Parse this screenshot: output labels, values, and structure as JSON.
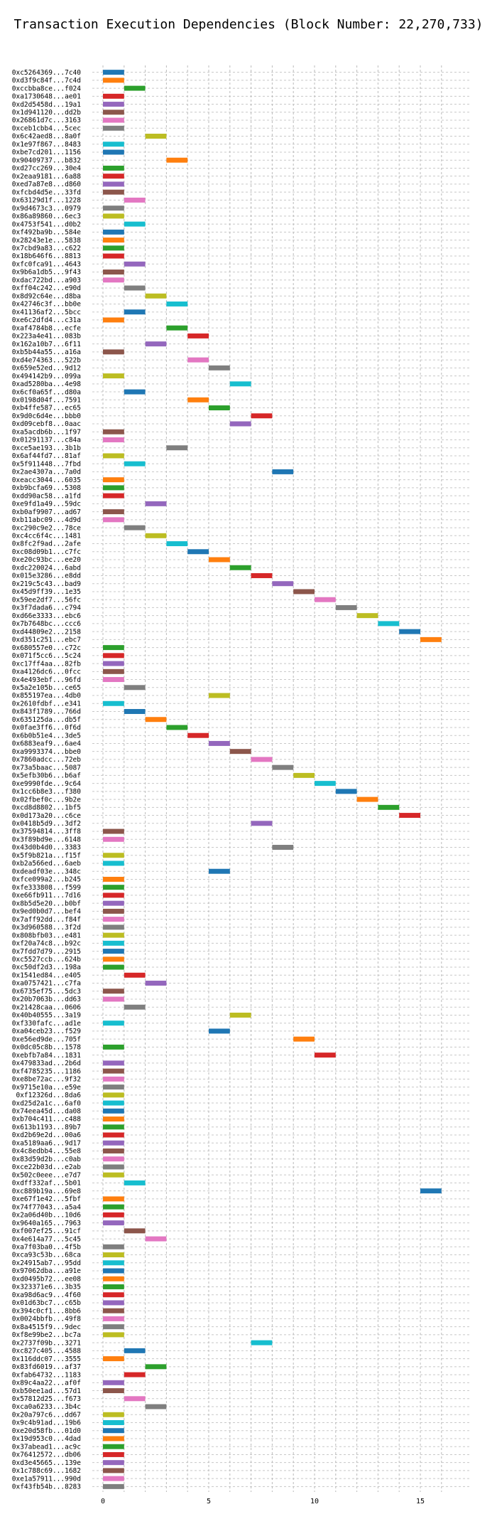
{
  "chart_data": {
    "type": "gantt",
    "title": "Transaction Execution Dependencies (Block Number: 22,270,733)",
    "xlabel": "",
    "ylabel": "",
    "xlim": [
      0,
      16.5
    ],
    "x_ticks": [
      0,
      5,
      10,
      15
    ],
    "grid": true,
    "palette": [
      "#1f77b4",
      "#ff7f0e",
      "#2ca02c",
      "#d62728",
      "#9467bd",
      "#8c564b",
      "#e377c2",
      "#7f7f7f",
      "#bcbd22",
      "#17becf"
    ],
    "rows": [
      {
        "label": "0xc5264369...7c40",
        "start": 0
      },
      {
        "label": "0xd3f9c84f...7c4d",
        "start": 0
      },
      {
        "label": "0xccbba8ce...f024",
        "start": 1
      },
      {
        "label": "0xa1730648...ae01",
        "start": 0
      },
      {
        "label": "0xd2d5458d...19a1",
        "start": 0
      },
      {
        "label": "0x1d941120...dd2b",
        "start": 0
      },
      {
        "label": "0x26861d7c...3163",
        "start": 0
      },
      {
        "label": "0xceb1cbb4...5cec",
        "start": 0
      },
      {
        "label": "0x6c42aed8...8a0f",
        "start": 2
      },
      {
        "label": "0x1e97f867...8483",
        "start": 0
      },
      {
        "label": "0xbe7cd201...1156",
        "start": 0
      },
      {
        "label": "0x90409737...b832",
        "start": 3
      },
      {
        "label": "0xd27cc269...30e4",
        "start": 0
      },
      {
        "label": "0x2eaa9181...6a88",
        "start": 0
      },
      {
        "label": "0xed7a87e8...d860",
        "start": 0
      },
      {
        "label": "0xfcbd4d5e...33fd",
        "start": 0
      },
      {
        "label": "0x63129d1f...1228",
        "start": 1
      },
      {
        "label": "0x9d4673c3...0979",
        "start": 0
      },
      {
        "label": "0x86a89860...6ec3",
        "start": 0
      },
      {
        "label": "0x4753f541...d0b2",
        "start": 1
      },
      {
        "label": "0xf492ba9b...584e",
        "start": 0
      },
      {
        "label": "0x28243e1e...5838",
        "start": 0
      },
      {
        "label": "0x7cbd9a83...c622",
        "start": 0
      },
      {
        "label": "0x18b646f6...8813",
        "start": 0
      },
      {
        "label": "0xfc0fca91...4643",
        "start": 1
      },
      {
        "label": "0x9b6a1db5...9f43",
        "start": 0
      },
      {
        "label": "0xdac722bd...a903",
        "start": 0
      },
      {
        "label": "0xff04c242...e90d",
        "start": 1
      },
      {
        "label": "0x8d92c64e...d8ba",
        "start": 2
      },
      {
        "label": "0x42746c3f...bb0e",
        "start": 3
      },
      {
        "label": "0x41136af2...5bcc",
        "start": 1
      },
      {
        "label": "0xe6c2dfd4...c31a",
        "start": 0
      },
      {
        "label": "0xaf4784b8...ecfe",
        "start": 3
      },
      {
        "label": "0x223a4e41...083b",
        "start": 4
      },
      {
        "label": "0x162a10b7...6f11",
        "start": 2
      },
      {
        "label": "0xb5b44a55...a16a",
        "start": 0
      },
      {
        "label": "0xd4e74363...522b",
        "start": 4
      },
      {
        "label": "0x659e52ed...9d12",
        "start": 5
      },
      {
        "label": "0x494142b9...099a",
        "start": 0
      },
      {
        "label": "0xad5280ba...4e98",
        "start": 6
      },
      {
        "label": "0x6cf0a65f...d80a",
        "start": 1
      },
      {
        "label": "0x0198d04f...7591",
        "start": 4
      },
      {
        "label": "0xb4ffe587...ec65",
        "start": 5
      },
      {
        "label": "0x9d0c6d4e...bbb0",
        "start": 7
      },
      {
        "label": "0xd09cebf8...0aac",
        "start": 6
      },
      {
        "label": "0xa5acdb6b...1f97",
        "start": 0
      },
      {
        "label": "0x01291137...c84a",
        "start": 0
      },
      {
        "label": "0xce5ae193...3b1b",
        "start": 3
      },
      {
        "label": "0x6af44fd7...81af",
        "start": 0
      },
      {
        "label": "0x5f911448...7fbd",
        "start": 1
      },
      {
        "label": "0x2ae4307a...7a0d",
        "start": 8
      },
      {
        "label": "0xeacc3044...6035",
        "start": 0
      },
      {
        "label": "0xb9bcfa69...5308",
        "start": 0
      },
      {
        "label": "0xdd90ac58...a1fd",
        "start": 0
      },
      {
        "label": "0xe9fd1a49...59dc",
        "start": 2
      },
      {
        "label": "0xb0af9907...ad67",
        "start": 0
      },
      {
        "label": "0xb11abc09...4d9d",
        "start": 0
      },
      {
        "label": "0xc290c9e2...78ce",
        "start": 1
      },
      {
        "label": "0xc4cc6f4c...1481",
        "start": 2
      },
      {
        "label": "0x8fc2f9ad...2afe",
        "start": 3
      },
      {
        "label": "0xc08d09b1...c7fc",
        "start": 4
      },
      {
        "label": "0xe20c93bc...ee20",
        "start": 5
      },
      {
        "label": "0xdc220024...6abd",
        "start": 6
      },
      {
        "label": "0x015e3286...e8dd",
        "start": 7
      },
      {
        "label": "0x219c5c43...bad9",
        "start": 8
      },
      {
        "label": "0x45d9ff39...1e35",
        "start": 9
      },
      {
        "label": "0x59ee2df7...56fc",
        "start": 10
      },
      {
        "label": "0x3f7dada6...c794",
        "start": 11
      },
      {
        "label": "0xd66e3333...ebc6",
        "start": 12
      },
      {
        "label": "0x7b7648bc...ccc6",
        "start": 13
      },
      {
        "label": "0xd44809e2...2158",
        "start": 14
      },
      {
        "label": "0xd351c251...ebc7",
        "start": 15
      },
      {
        "label": "0x680557e0...c72c",
        "start": 0
      },
      {
        "label": "0x071f5cc6...5c24",
        "start": 0
      },
      {
        "label": "0xc17ff4aa...82fb",
        "start": 0
      },
      {
        "label": "0xa4126dc6...0fcc",
        "start": 0
      },
      {
        "label": "0x4e493ebf...96fd",
        "start": 0
      },
      {
        "label": "0x5a2e105b...ce65",
        "start": 1
      },
      {
        "label": "0x855197ea...4db0",
        "start": 5
      },
      {
        "label": "0x2610fdbf...e341",
        "start": 0
      },
      {
        "label": "0x843f1789...766d",
        "start": 1
      },
      {
        "label": "0x635125da...db5f",
        "start": 2
      },
      {
        "label": "0x0fae3ff6...0f6d",
        "start": 3
      },
      {
        "label": "0x6b0b51e4...3de5",
        "start": 4
      },
      {
        "label": "0x6883eaf9...6ae4",
        "start": 5
      },
      {
        "label": "0xa9993374...bbe0",
        "start": 6
      },
      {
        "label": "0x7860adcc...72eb",
        "start": 7
      },
      {
        "label": "0x73a5baac...5087",
        "start": 8
      },
      {
        "label": "0x5efb30b6...b6af",
        "start": 9
      },
      {
        "label": "0xe9990fde...9c64",
        "start": 10
      },
      {
        "label": "0x1cc6b8e3...f380",
        "start": 11
      },
      {
        "label": "0x02fbef0c...9b2e",
        "start": 12
      },
      {
        "label": "0xcd8d8802...1bf5",
        "start": 13
      },
      {
        "label": "0x0d173a20...c6ce",
        "start": 14
      },
      {
        "label": "0x0418b5d9...3df2",
        "start": 7
      },
      {
        "label": "0x37594814...3ff8",
        "start": 0
      },
      {
        "label": "0x3f89bd9e...6148",
        "start": 0
      },
      {
        "label": "0x43d0b4d0...3383",
        "start": 8
      },
      {
        "label": "0x5f9b821a...f15f",
        "start": 0
      },
      {
        "label": "0xb2a566ed...6aeb",
        "start": 0
      },
      {
        "label": "0xdeadf03e...348c",
        "start": 5
      },
      {
        "label": "0xfce099a2...b245",
        "start": 0
      },
      {
        "label": "0xfe333808...f599",
        "start": 0
      },
      {
        "label": "0xe66fb911...7d16",
        "start": 0
      },
      {
        "label": "0x8b5d5e20...b0bf",
        "start": 0
      },
      {
        "label": "0x9ed0b0d7...bef4",
        "start": 0
      },
      {
        "label": "0x7aff92dd...f84f",
        "start": 0
      },
      {
        "label": "0x3d960588...3f2d",
        "start": 0
      },
      {
        "label": "0x808bfb03...e481",
        "start": 0
      },
      {
        "label": "0xf20a74c8...b92c",
        "start": 0
      },
      {
        "label": "0x7fdd7d79...2915",
        "start": 0
      },
      {
        "label": "0xc5527ccb...624b",
        "start": 0
      },
      {
        "label": "0xc50df2d3...198a",
        "start": 0
      },
      {
        "label": "0x1541ed84...e405",
        "start": 1
      },
      {
        "label": "0xa0757421...c7fa",
        "start": 2
      },
      {
        "label": "0x6735ef75...5dc3",
        "start": 0
      },
      {
        "label": "0x20b7063b...dd63",
        "start": 0
      },
      {
        "label": "0x21428caa...0606",
        "start": 1
      },
      {
        "label": "0x40b40555...3a19",
        "start": 6
      },
      {
        "label": "0xf330fafc...ad1e",
        "start": 0
      },
      {
        "label": "0xa04ceb23...f529",
        "start": 5
      },
      {
        "label": "0xe56ed9de...705f",
        "start": 9
      },
      {
        "label": "0x0dc05c8b...1578",
        "start": 0
      },
      {
        "label": "0xebfb7a84...1831",
        "start": 10
      },
      {
        "label": "0x479833ad...2b6d",
        "start": 0
      },
      {
        "label": "0xf4785235...1186",
        "start": 0
      },
      {
        "label": "0xe8be72ac...9f32",
        "start": 0
      },
      {
        "label": "0x9715e10a...e59e",
        "start": 0
      },
      {
        "label": "0xf12326d...8da6",
        "start": 0
      },
      {
        "label": "0xd25d2a1c...6af0",
        "start": 0
      },
      {
        "label": "0x74eea45d...da08",
        "start": 0
      },
      {
        "label": "0xb704c411...c488",
        "start": 0
      },
      {
        "label": "0x613b1193...89b7",
        "start": 0
      },
      {
        "label": "0xd2b69e2d...00a6",
        "start": 0
      },
      {
        "label": "0xa5189aa6...9d17",
        "start": 0
      },
      {
        "label": "0x4c8edbb4...55e8",
        "start": 0
      },
      {
        "label": "0x83d59d2b...c0ab",
        "start": 0
      },
      {
        "label": "0xce22b03d...e2ab",
        "start": 0
      },
      {
        "label": "0x502c0eee...e7d7",
        "start": 0
      },
      {
        "label": "0xdff332af...5b01",
        "start": 1
      },
      {
        "label": "0xc889b19a...69e8",
        "start": 15
      },
      {
        "label": "0xe67f1e42...5fbf",
        "start": 0
      },
      {
        "label": "0x74f77043...a5a4",
        "start": 0
      },
      {
        "label": "0x2a06d40b...10d6",
        "start": 0
      },
      {
        "label": "0x9640a165...7963",
        "start": 0
      },
      {
        "label": "0xf007ef25...91cf",
        "start": 1
      },
      {
        "label": "0x4e614a77...5c45",
        "start": 2
      },
      {
        "label": "0xa7f03ba0...4f5b",
        "start": 0
      },
      {
        "label": "0xca93c53b...68ca",
        "start": 0
      },
      {
        "label": "0x24915ab7...95dd",
        "start": 0
      },
      {
        "label": "0x97062dba...a91e",
        "start": 0
      },
      {
        "label": "0xd0495b72...ee08",
        "start": 0
      },
      {
        "label": "0x323371e6...3b35",
        "start": 0
      },
      {
        "label": "0xa98d6ac9...4f60",
        "start": 0
      },
      {
        "label": "0x01d63bc7...c65b",
        "start": 0
      },
      {
        "label": "0x394c0cf1...8bb6",
        "start": 0
      },
      {
        "label": "0x0024bbfb...49f8",
        "start": 0
      },
      {
        "label": "0x8a4515f9...9dec",
        "start": 0
      },
      {
        "label": "0xf8e99be2...bc7a",
        "start": 0
      },
      {
        "label": "0x2737f09b...3271",
        "start": 7
      },
      {
        "label": "0xc827c405...4588",
        "start": 1
      },
      {
        "label": "0x116ddc07...3555",
        "start": 0
      },
      {
        "label": "0x83fd6019...af37",
        "start": 2
      },
      {
        "label": "0xfab64732...1183",
        "start": 1
      },
      {
        "label": "0x89c4aa22...af0f",
        "start": 0
      },
      {
        "label": "0xb50ee1ad...57d1",
        "start": 0
      },
      {
        "label": "0x57812d25...f673",
        "start": 1
      },
      {
        "label": "0xca0a6233...3b4c",
        "start": 2
      },
      {
        "label": "0x20a797c6...dd67",
        "start": 0
      },
      {
        "label": "0x9c4b91ad...19b6",
        "start": 0
      },
      {
        "label": "0xe20d58fb...01d0",
        "start": 0
      },
      {
        "label": "0x19d953c0...4dad",
        "start": 0
      },
      {
        "label": "0x37abead1...ac9c",
        "start": 0
      },
      {
        "label": "0x76412572...db06",
        "start": 0
      },
      {
        "label": "0xd3e45665...139e",
        "start": 0
      },
      {
        "label": "0x1c788c69...1682",
        "start": 0
      },
      {
        "label": "0xe1a57911...990d",
        "start": 0
      },
      {
        "label": "0xf43fb54b...8283",
        "start": 0
      }
    ]
  }
}
